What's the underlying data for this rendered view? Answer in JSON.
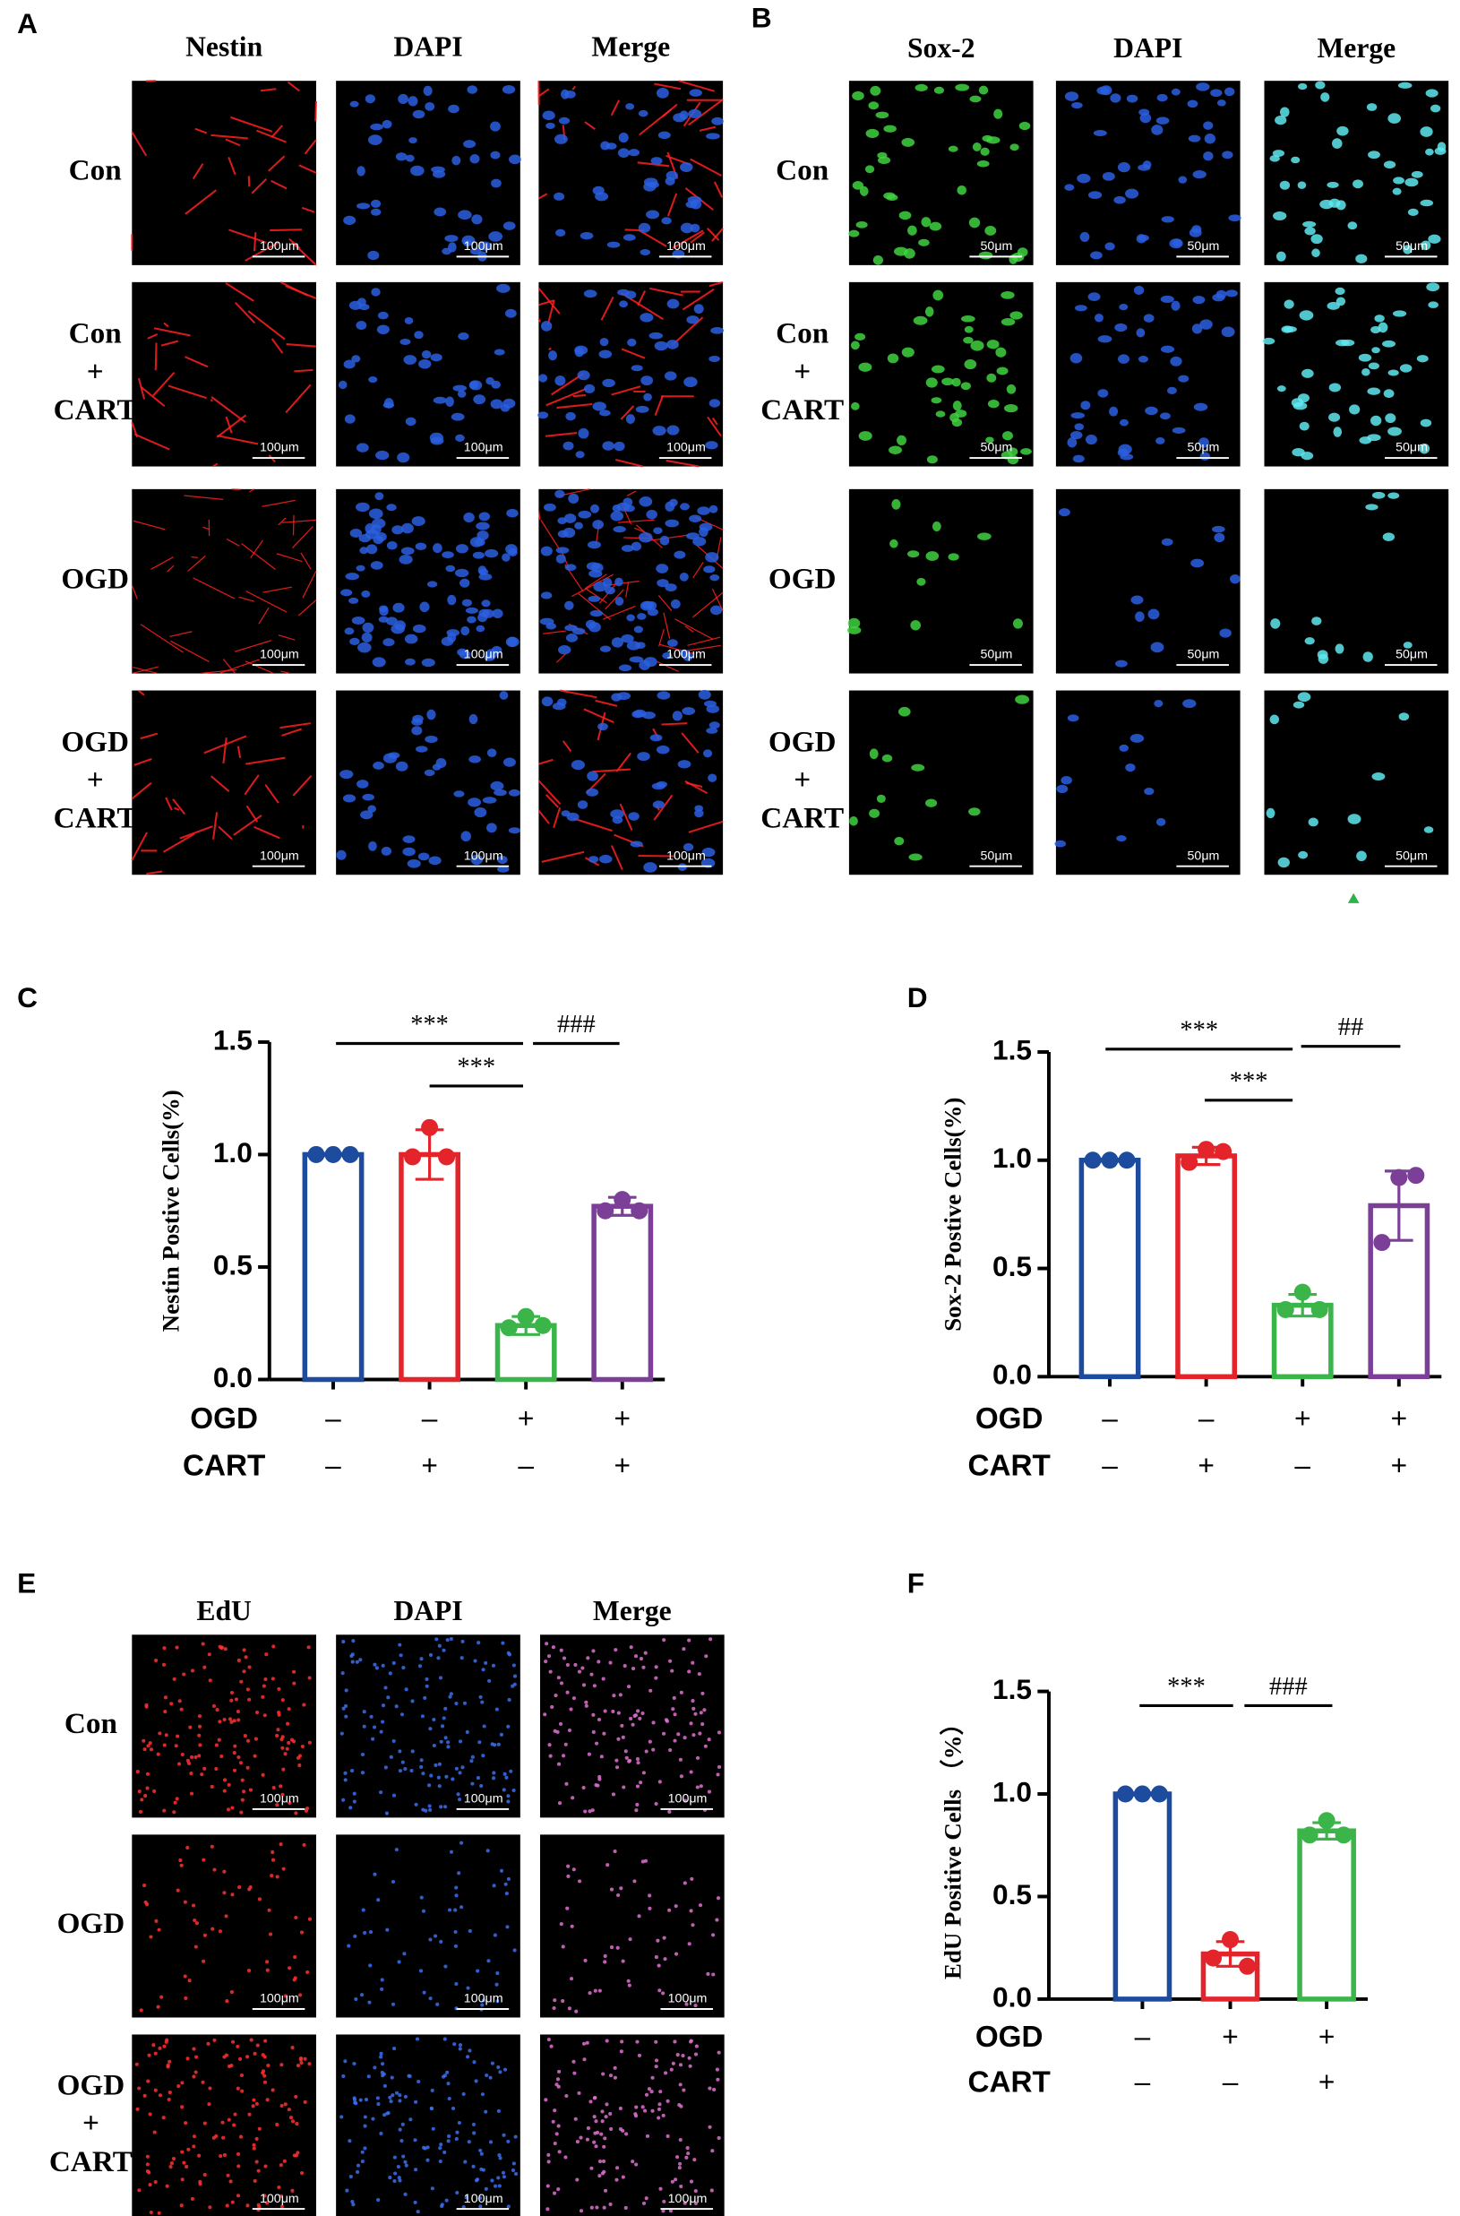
{
  "image_panels": [
    {
      "label": "A",
      "columns": [
        "Nestin",
        "DAPI",
        "Merge"
      ],
      "rows": [
        [
          "Con"
        ],
        [
          "Con",
          "+",
          "CART"
        ],
        [
          "OGD"
        ],
        [
          "OGD",
          "+",
          "CART"
        ]
      ],
      "scale_bar": "100μm"
    },
    {
      "label": "B",
      "columns": [
        "Sox-2",
        "DAPI",
        "Merge"
      ],
      "rows": [
        [
          "Con"
        ],
        [
          "Con",
          "+",
          "CART"
        ],
        [
          "OGD"
        ],
        [
          "OGD",
          "+",
          "CART"
        ]
      ],
      "scale_bar": "50μm"
    },
    {
      "label": "E",
      "columns": [
        "EdU",
        "DAPI",
        "Merge"
      ],
      "rows": [
        [
          "Con"
        ],
        [
          "OGD"
        ],
        [
          "OGD",
          "+",
          "CART"
        ]
      ],
      "scale_bar": "100μm"
    }
  ],
  "chart_data": [
    {
      "type": "bar",
      "panel_label": "C",
      "y_label": "Nestin Postive Cells(%)",
      "conditions": [
        {
          "name": "OGD",
          "signs": [
            "–",
            "–",
            "+",
            "+"
          ]
        },
        {
          "name": "CART",
          "signs": [
            "–",
            "+",
            "–",
            "+"
          ]
        }
      ],
      "values": [
        1.0,
        1.0,
        0.24,
        0.77
      ],
      "errors": [
        0,
        0.11,
        0.04,
        0.04
      ],
      "points": [
        [
          1.0,
          1.0,
          1.0
        ],
        [
          0.99,
          1.12,
          0.99
        ],
        [
          0.23,
          0.28,
          0.24
        ],
        [
          0.75,
          0.8,
          0.75
        ]
      ],
      "colors": [
        "#1d4b9e",
        "#e3242b",
        "#3bb54a",
        "#7b3f98"
      ],
      "annotations": [
        "***",
        "***",
        "###"
      ],
      "ylim": [
        0,
        1.5
      ],
      "yticks": [
        {
          "value": 0,
          "label": "0.0"
        },
        {
          "value": 0.5,
          "label": "0.5"
        },
        {
          "value": 1,
          "label": "1.0"
        },
        {
          "value": 1.5,
          "label": "1.5"
        }
      ]
    },
    {
      "type": "bar",
      "panel_label": "D",
      "y_label": "Sox-2 Postive Cells(%)",
      "conditions": [
        {
          "name": "OGD",
          "signs": [
            "–",
            "–",
            "+",
            "+"
          ]
        },
        {
          "name": "CART",
          "signs": [
            "–",
            "+",
            "–",
            "+"
          ]
        }
      ],
      "values": [
        1.0,
        1.02,
        0.33,
        0.79
      ],
      "errors": [
        0,
        0.04,
        0.05,
        0.16
      ],
      "points": [
        [
          1.0,
          1.0,
          1.0
        ],
        [
          0.99,
          1.05,
          1.04
        ],
        [
          0.31,
          0.39,
          0.31
        ],
        [
          0.62,
          0.92,
          0.93
        ]
      ],
      "colors": [
        "#1d4b9e",
        "#e3242b",
        "#3bb54a",
        "#7b3f98"
      ],
      "annotations": [
        "***",
        "***",
        "##"
      ],
      "ylim": [
        0,
        1.5
      ],
      "yticks": [
        {
          "value": 0,
          "label": "0.0"
        },
        {
          "value": 0.5,
          "label": "0.5"
        },
        {
          "value": 1,
          "label": "1.0"
        },
        {
          "value": 1.5,
          "label": "1.5"
        }
      ]
    },
    {
      "type": "bar",
      "panel_label": "F",
      "y_label": "EdU Positive Cells （%）",
      "conditions": [
        {
          "name": "OGD",
          "signs": [
            "–",
            "+",
            "+"
          ]
        },
        {
          "name": "CART",
          "signs": [
            "–",
            "–",
            "+"
          ]
        }
      ],
      "values": [
        1.0,
        0.22,
        0.82
      ],
      "errors": [
        0,
        0.06,
        0.04
      ],
      "points": [
        [
          1.0,
          1.0,
          1.0
        ],
        [
          0.2,
          0.29,
          0.16
        ],
        [
          0.8,
          0.87,
          0.8
        ]
      ],
      "colors": [
        "#1d4b9e",
        "#e3242b",
        "#3bb54a"
      ],
      "annotations": [
        "***",
        "###"
      ],
      "ylim": [
        0,
        1.5
      ],
      "yticks": [
        {
          "value": 0,
          "label": "0.0"
        },
        {
          "value": 0.5,
          "label": "0.5"
        },
        {
          "value": 1,
          "label": "1.0"
        },
        {
          "value": 1.5,
          "label": "1.5"
        }
      ]
    }
  ]
}
